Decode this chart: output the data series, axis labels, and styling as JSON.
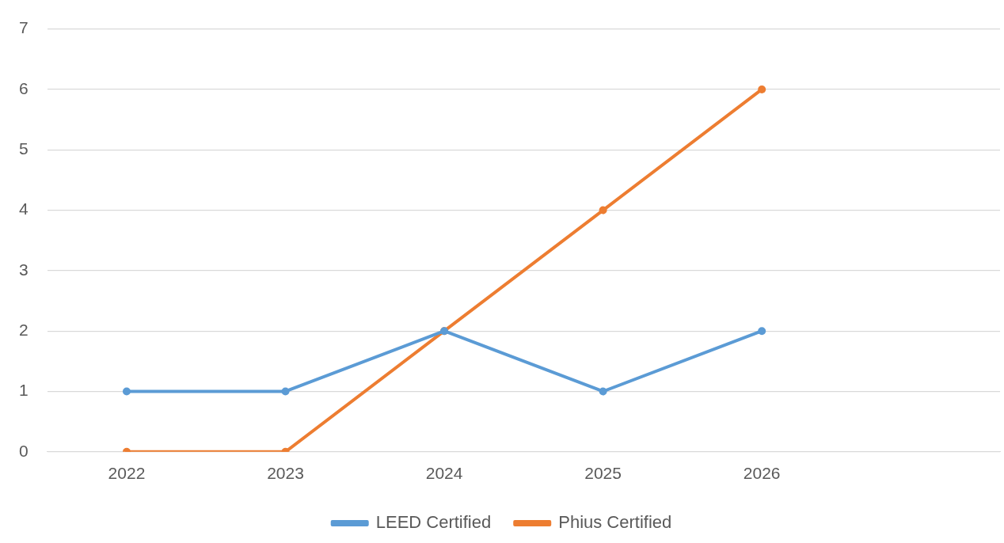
{
  "chart_data": {
    "type": "line",
    "categories": [
      "2022",
      "2023",
      "2024",
      "2025",
      "2026",
      null
    ],
    "series": [
      {
        "name": "LEED Certified",
        "color": "#5b9bd5",
        "values": [
          1,
          1,
          2,
          1,
          2,
          null
        ]
      },
      {
        "name": "Phius Certified",
        "color": "#ed7d31",
        "values": [
          0,
          0,
          2,
          4,
          6,
          null
        ]
      }
    ],
    "ylim": [
      0,
      7
    ],
    "yticks": [
      0,
      1,
      2,
      3,
      4,
      5,
      6,
      7
    ],
    "grid": "y",
    "legend": "bottom",
    "marker": "circle",
    "line_style": "solid"
  }
}
